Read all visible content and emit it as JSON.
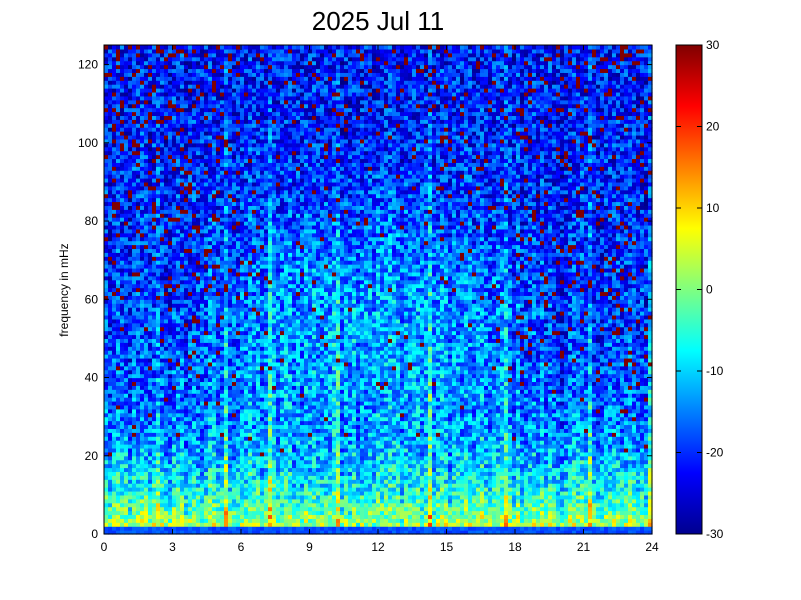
{
  "chart_data": {
    "type": "heatmap",
    "title": "2025 Jul 11",
    "xlabel": "",
    "ylabel": "frequency in mHz",
    "xlim": [
      0,
      24
    ],
    "ylim": [
      0,
      125
    ],
    "xticks": [
      "0",
      "3",
      "6",
      "9",
      "12",
      "15",
      "18",
      "21",
      "24"
    ],
    "yticks": [
      "0",
      "20",
      "40",
      "60",
      "80",
      "100",
      "120"
    ],
    "colorbar": {
      "range": [
        -30,
        30
      ],
      "ticks": [
        "-30",
        "-20",
        "-10",
        "0",
        "10",
        "20",
        "30"
      ],
      "colormap": "jet"
    },
    "grid": false
  }
}
